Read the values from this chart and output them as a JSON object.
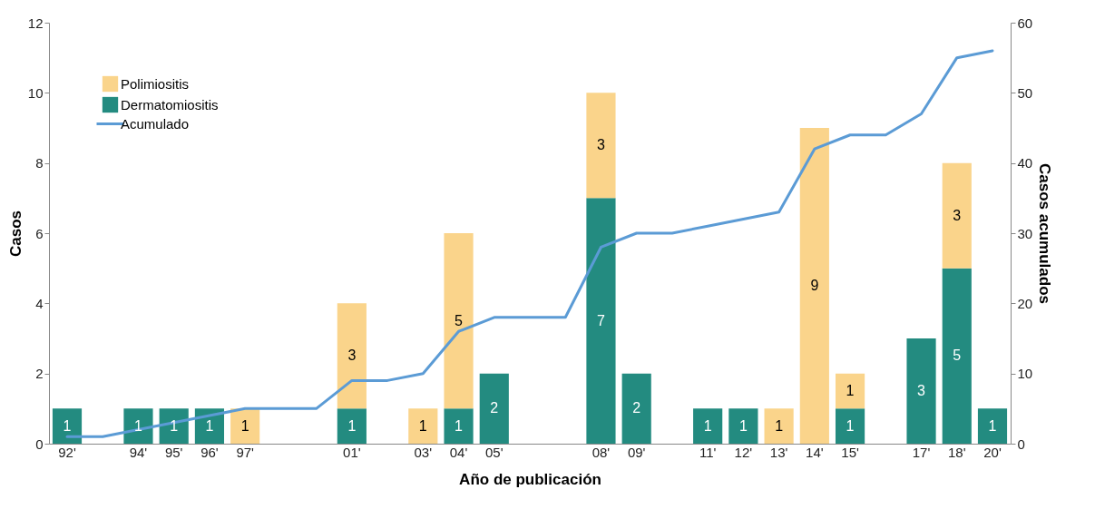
{
  "chart_data": {
    "type": "bar",
    "xlabel": "Año de publicación",
    "ylabel": "Casos",
    "y2label": "Casos acumulados",
    "categories": [
      "92'",
      null,
      "94'",
      "95'",
      "96'",
      "97'",
      null,
      null,
      "01'",
      null,
      "03'",
      "04'",
      "05'",
      null,
      null,
      "08'",
      "09'",
      null,
      "11'",
      "12'",
      "13'",
      "14'",
      "15'",
      null,
      "17'",
      "18'",
      "20'"
    ],
    "stacked": true,
    "legend": "top left",
    "grid": false,
    "ylim": [
      0,
      12
    ],
    "yticks": [
      0,
      2,
      4,
      6,
      8,
      10,
      12
    ],
    "y2lim": [
      0,
      60
    ],
    "y2ticks": [
      0,
      10,
      20,
      30,
      40,
      50,
      60
    ],
    "series": [
      {
        "name": "Dermatomiositis",
        "color": "#238b80",
        "values": [
          1,
          null,
          1,
          1,
          1,
          null,
          null,
          null,
          1,
          null,
          null,
          1,
          2,
          null,
          null,
          7,
          2,
          null,
          1,
          1,
          null,
          null,
          1,
          null,
          3,
          5,
          1
        ],
        "value_labels": [
          "1",
          null,
          "1",
          "1",
          "1",
          null,
          null,
          null,
          "1",
          null,
          null,
          "1",
          "2",
          null,
          null,
          "7",
          "2",
          null,
          "1",
          "1",
          null,
          null,
          "1",
          null,
          "3",
          "5",
          "1"
        ]
      },
      {
        "name": "Polimiositis",
        "color": "#fad48b",
        "values": [
          null,
          null,
          null,
          null,
          null,
          1,
          null,
          null,
          3,
          null,
          1,
          5,
          null,
          null,
          null,
          3,
          null,
          null,
          null,
          null,
          1,
          9,
          1,
          null,
          null,
          3,
          null
        ],
        "value_labels": [
          null,
          null,
          null,
          null,
          null,
          "1",
          null,
          null,
          "3",
          null,
          "1",
          "5",
          null,
          null,
          null,
          "3",
          null,
          null,
          null,
          null,
          "1",
          "9",
          "1",
          null,
          null,
          "3",
          null
        ]
      },
      {
        "name": "Acumulado",
        "type": "line",
        "axis": "y2",
        "color": "#5b9bd5",
        "values": [
          1,
          1,
          2,
          3,
          4,
          5,
          5,
          5,
          9,
          9,
          10,
          16,
          18,
          18,
          18,
          28,
          30,
          30,
          31,
          32,
          33,
          42,
          44,
          44,
          47,
          55,
          56
        ]
      }
    ]
  }
}
